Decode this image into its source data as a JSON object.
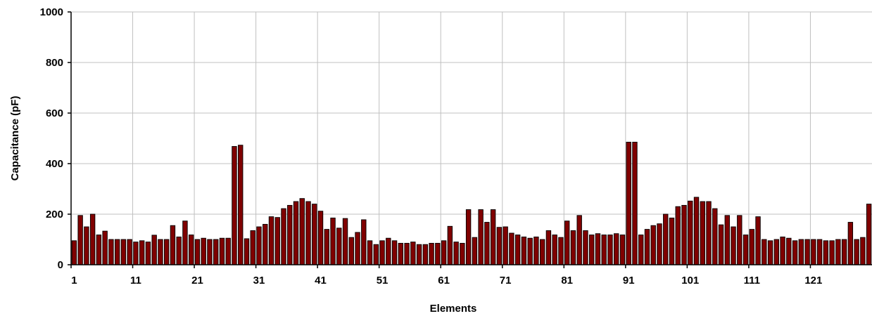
{
  "chart_data": {
    "type": "bar",
    "title": "",
    "xlabel": "Elements",
    "ylabel": "Capacitance (pF)",
    "ylim": [
      0,
      1000
    ],
    "yticks": [
      0,
      200,
      400,
      600,
      800,
      1000
    ],
    "xtick_labels": [
      "1",
      "11",
      "21",
      "31",
      "41",
      "51",
      "61",
      "71",
      "81",
      "91",
      "101",
      "111",
      "121"
    ],
    "grid": true,
    "bar_color": "#800000",
    "bar_stroke": "#000000",
    "grid_color": "#c0c0c0",
    "x_start": 1,
    "values": [
      95,
      195,
      150,
      200,
      118,
      133,
      100,
      100,
      100,
      100,
      90,
      95,
      90,
      117,
      100,
      100,
      155,
      110,
      173,
      118,
      100,
      105,
      100,
      100,
      105,
      105,
      468,
      473,
      103,
      135,
      150,
      160,
      190,
      187,
      222,
      235,
      250,
      262,
      250,
      240,
      212,
      140,
      185,
      145,
      183,
      108,
      128,
      178,
      95,
      80,
      95,
      105,
      95,
      85,
      85,
      90,
      80,
      80,
      85,
      85,
      95,
      152,
      90,
      85,
      218,
      108,
      218,
      168,
      218,
      148,
      150,
      125,
      118,
      110,
      105,
      110,
      100,
      135,
      118,
      108,
      173,
      135,
      195,
      135,
      118,
      123,
      118,
      118,
      123,
      118,
      485,
      485,
      118,
      140,
      155,
      162,
      200,
      185,
      230,
      235,
      252,
      267,
      250,
      250,
      222,
      158,
      195,
      150,
      195,
      118,
      140,
      190,
      100,
      95,
      100,
      110,
      105,
      95,
      100,
      100,
      100,
      100,
      95,
      95,
      100,
      100,
      168,
      100,
      108,
      240
    ]
  }
}
